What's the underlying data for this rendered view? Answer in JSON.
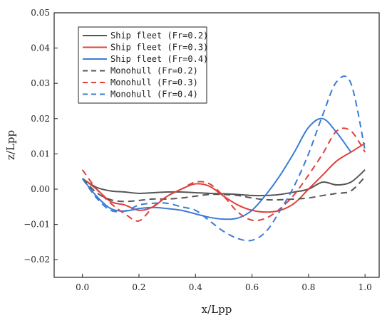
{
  "chart_data": {
    "type": "line",
    "title": "",
    "xlabel": "x/Lpp",
    "ylabel": "z/Lpp",
    "xlim": [
      -0.1,
      1.05
    ],
    "ylim": [
      -0.025,
      0.05
    ],
    "xticks": [
      {
        "v": 0.0,
        "label": "0.0"
      },
      {
        "v": 0.2,
        "label": "0.2"
      },
      {
        "v": 0.4,
        "label": "0.4"
      },
      {
        "v": 0.6,
        "label": "0.6"
      },
      {
        "v": 0.8,
        "label": "0.8"
      },
      {
        "v": 1.0,
        "label": "1.0"
      }
    ],
    "yticks": [
      {
        "v": -0.02,
        "label": "−0.02"
      },
      {
        "v": -0.01,
        "label": "−0.01"
      },
      {
        "v": 0.0,
        "label": "0.00"
      },
      {
        "v": 0.01,
        "label": "0.01"
      },
      {
        "v": 0.02,
        "label": "0.02"
      },
      {
        "v": 0.03,
        "label": "0.03"
      },
      {
        "v": 0.04,
        "label": "0.04"
      },
      {
        "v": 0.05,
        "label": "0.05"
      }
    ],
    "grid": false,
    "legend_position": "top-left",
    "series": [
      {
        "name": "Ship fleet (Fr=0.2)",
        "color": "#555555",
        "dash": "solid",
        "x": [
          0.0,
          0.05,
          0.1,
          0.15,
          0.2,
          0.25,
          0.3,
          0.35,
          0.4,
          0.45,
          0.5,
          0.55,
          0.6,
          0.65,
          0.7,
          0.75,
          0.8,
          0.85,
          0.9,
          0.95,
          1.0
        ],
        "y": [
          0.003,
          0.0005,
          -0.0005,
          -0.0008,
          -0.0012,
          -0.001,
          -0.0008,
          -0.0008,
          -0.001,
          -0.0012,
          -0.0013,
          -0.0015,
          -0.0018,
          -0.0018,
          -0.0015,
          -0.0008,
          0.0,
          0.002,
          0.0012,
          0.002,
          0.0055
        ]
      },
      {
        "name": "Ship fleet (Fr=0.3)",
        "color": "#e0403a",
        "dash": "solid",
        "x": [
          0.0,
          0.05,
          0.1,
          0.15,
          0.2,
          0.25,
          0.3,
          0.35,
          0.4,
          0.45,
          0.5,
          0.55,
          0.6,
          0.65,
          0.7,
          0.75,
          0.8,
          0.85,
          0.9,
          0.95,
          1.0
        ],
        "y": [
          0.003,
          0.0,
          -0.0035,
          -0.0045,
          -0.006,
          -0.005,
          -0.002,
          0.0,
          0.0015,
          0.0008,
          -0.002,
          -0.0045,
          -0.006,
          -0.0065,
          -0.006,
          -0.004,
          0.0,
          0.004,
          0.008,
          0.0105,
          0.013
        ]
      },
      {
        "name": "Ship fleet (Fr=0.4)",
        "color": "#3a7bd5",
        "dash": "solid",
        "x": [
          0.0,
          0.05,
          0.1,
          0.15,
          0.2,
          0.25,
          0.3,
          0.35,
          0.4,
          0.45,
          0.5,
          0.55,
          0.6,
          0.65,
          0.7,
          0.75,
          0.8,
          0.85,
          0.9,
          0.95
        ],
        "y": [
          0.003,
          -0.002,
          -0.0055,
          -0.0062,
          -0.0055,
          -0.0052,
          -0.0055,
          -0.006,
          -0.007,
          -0.008,
          -0.0085,
          -0.0082,
          -0.006,
          -0.0015,
          0.004,
          0.0105,
          0.0175,
          0.02,
          0.016,
          0.0105
        ]
      },
      {
        "name": "Monohull (Fr=0.2)",
        "color": "#555555",
        "dash": "dashed",
        "x": [
          0.0,
          0.05,
          0.1,
          0.15,
          0.2,
          0.25,
          0.3,
          0.35,
          0.4,
          0.45,
          0.5,
          0.55,
          0.6,
          0.65,
          0.7,
          0.75,
          0.8,
          0.85,
          0.9,
          0.95,
          1.0
        ],
        "y": [
          0.003,
          -0.001,
          -0.003,
          -0.0035,
          -0.0032,
          -0.0028,
          -0.0028,
          -0.0025,
          -0.002,
          -0.0015,
          -0.0015,
          -0.0018,
          -0.0025,
          -0.003,
          -0.003,
          -0.0028,
          -0.0025,
          -0.0018,
          -0.0012,
          -0.0005,
          0.0035
        ]
      },
      {
        "name": "Monohull (Fr=0.3)",
        "color": "#e0403a",
        "dash": "dashed",
        "x": [
          0.0,
          0.05,
          0.1,
          0.15,
          0.2,
          0.25,
          0.3,
          0.35,
          0.4,
          0.45,
          0.5,
          0.55,
          0.6,
          0.65,
          0.7,
          0.75,
          0.8,
          0.85,
          0.9,
          0.95,
          1.0
        ],
        "y": [
          0.0055,
          0.0,
          -0.004,
          -0.007,
          -0.009,
          -0.005,
          -0.002,
          0.0,
          0.002,
          0.0015,
          -0.002,
          -0.0065,
          -0.0088,
          -0.0082,
          -0.0055,
          -0.0015,
          0.004,
          0.01,
          0.0165,
          0.0165,
          0.0105
        ]
      },
      {
        "name": "Monohull (Fr=0.4)",
        "color": "#3a7bd5",
        "dash": "dashed",
        "x": [
          0.0,
          0.05,
          0.1,
          0.15,
          0.2,
          0.25,
          0.3,
          0.35,
          0.4,
          0.45,
          0.5,
          0.55,
          0.6,
          0.65,
          0.7,
          0.75,
          0.8,
          0.85,
          0.9,
          0.95,
          1.0
        ],
        "y": [
          0.003,
          -0.0025,
          -0.006,
          -0.0062,
          -0.0045,
          -0.004,
          -0.004,
          -0.005,
          -0.006,
          -0.009,
          -0.012,
          -0.014,
          -0.0145,
          -0.012,
          -0.006,
          0.001,
          0.01,
          0.021,
          0.0305,
          0.03,
          0.011
        ]
      }
    ]
  }
}
